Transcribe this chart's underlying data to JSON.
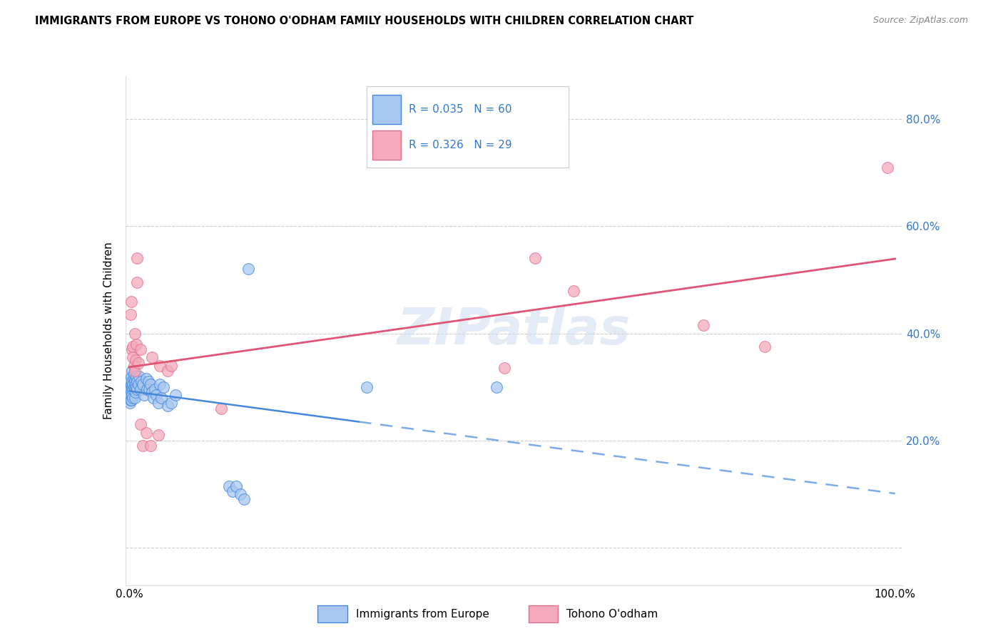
{
  "title": "IMMIGRANTS FROM EUROPE VS TOHONO O'ODHAM FAMILY HOUSEHOLDS WITH CHILDREN CORRELATION CHART",
  "source": "Source: ZipAtlas.com",
  "ylabel": "Family Households with Children",
  "legend_label1": "Immigrants from Europe",
  "legend_label2": "Tohono O'odham",
  "blue_color": "#A8C8F0",
  "pink_color": "#F4AABB",
  "blue_line_color": "#4488DD",
  "pink_line_color": "#E05575",
  "blue_edge_color": "#5599EE",
  "pink_edge_color": "#E07090",
  "watermark": "ZIPatlas",
  "ylim_min": -0.07,
  "ylim_max": 0.88,
  "xlim_min": -0.005,
  "xlim_max": 1.01,
  "blue_scatter": [
    [
      0.001,
      0.295
    ],
    [
      0.001,
      0.285
    ],
    [
      0.001,
      0.31
    ],
    [
      0.001,
      0.27
    ],
    [
      0.002,
      0.3
    ],
    [
      0.002,
      0.295
    ],
    [
      0.002,
      0.275
    ],
    [
      0.002,
      0.285
    ],
    [
      0.003,
      0.305
    ],
    [
      0.003,
      0.32
    ],
    [
      0.003,
      0.29
    ],
    [
      0.003,
      0.275
    ],
    [
      0.004,
      0.31
    ],
    [
      0.004,
      0.3
    ],
    [
      0.004,
      0.285
    ],
    [
      0.004,
      0.33
    ],
    [
      0.005,
      0.295
    ],
    [
      0.005,
      0.305
    ],
    [
      0.005,
      0.28
    ],
    [
      0.006,
      0.315
    ],
    [
      0.006,
      0.325
    ],
    [
      0.006,
      0.3
    ],
    [
      0.007,
      0.31
    ],
    [
      0.007,
      0.295
    ],
    [
      0.007,
      0.28
    ],
    [
      0.008,
      0.305
    ],
    [
      0.008,
      0.29
    ],
    [
      0.009,
      0.32
    ],
    [
      0.009,
      0.3
    ],
    [
      0.01,
      0.31
    ],
    [
      0.01,
      0.295
    ],
    [
      0.012,
      0.305
    ],
    [
      0.013,
      0.32
    ],
    [
      0.015,
      0.295
    ],
    [
      0.016,
      0.31
    ],
    [
      0.018,
      0.305
    ],
    [
      0.019,
      0.285
    ],
    [
      0.022,
      0.315
    ],
    [
      0.023,
      0.295
    ],
    [
      0.025,
      0.31
    ],
    [
      0.026,
      0.295
    ],
    [
      0.028,
      0.305
    ],
    [
      0.03,
      0.29
    ],
    [
      0.032,
      0.28
    ],
    [
      0.033,
      0.295
    ],
    [
      0.035,
      0.285
    ],
    [
      0.038,
      0.27
    ],
    [
      0.04,
      0.305
    ],
    [
      0.042,
      0.28
    ],
    [
      0.045,
      0.3
    ],
    [
      0.05,
      0.265
    ],
    [
      0.055,
      0.27
    ],
    [
      0.06,
      0.285
    ],
    [
      0.13,
      0.115
    ],
    [
      0.135,
      0.105
    ],
    [
      0.14,
      0.115
    ],
    [
      0.145,
      0.1
    ],
    [
      0.15,
      0.09
    ],
    [
      0.155,
      0.52
    ],
    [
      0.31,
      0.3
    ],
    [
      0.48,
      0.3
    ]
  ],
  "pink_scatter": [
    [
      0.002,
      0.435
    ],
    [
      0.003,
      0.46
    ],
    [
      0.004,
      0.37
    ],
    [
      0.005,
      0.375
    ],
    [
      0.005,
      0.355
    ],
    [
      0.006,
      0.34
    ],
    [
      0.007,
      0.4
    ],
    [
      0.007,
      0.33
    ],
    [
      0.008,
      0.35
    ],
    [
      0.009,
      0.38
    ],
    [
      0.01,
      0.54
    ],
    [
      0.01,
      0.495
    ],
    [
      0.012,
      0.345
    ],
    [
      0.015,
      0.37
    ],
    [
      0.015,
      0.23
    ],
    [
      0.018,
      0.19
    ],
    [
      0.022,
      0.215
    ],
    [
      0.028,
      0.19
    ],
    [
      0.03,
      0.355
    ],
    [
      0.038,
      0.21
    ],
    [
      0.04,
      0.34
    ],
    [
      0.05,
      0.33
    ],
    [
      0.055,
      0.34
    ],
    [
      0.12,
      0.26
    ],
    [
      0.49,
      0.335
    ],
    [
      0.53,
      0.54
    ],
    [
      0.58,
      0.48
    ],
    [
      0.75,
      0.415
    ],
    [
      0.83,
      0.375
    ],
    [
      0.99,
      0.71
    ]
  ]
}
